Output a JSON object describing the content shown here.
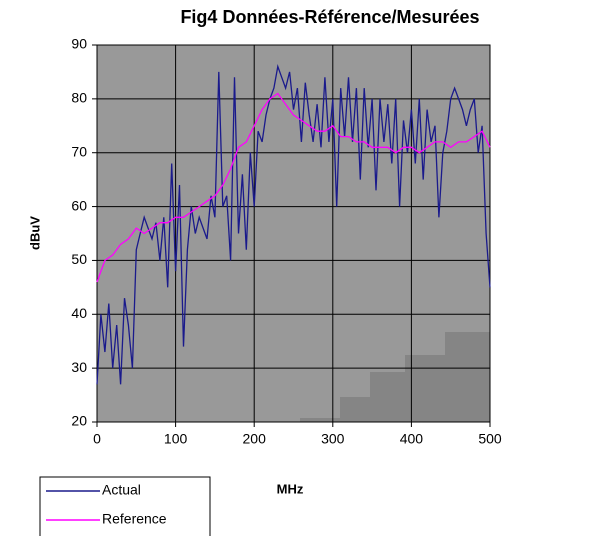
{
  "chart_data": {
    "type": "line",
    "title": "Fig4 Données-Référence/Mesurées",
    "x_label": "MHz",
    "y_label": "dBuV",
    "xlim": [
      0,
      500
    ],
    "xticks": [
      0,
      100,
      200,
      300,
      400,
      500
    ],
    "ylim": [
      20,
      90
    ],
    "yticks": [
      20,
      30,
      40,
      50,
      60,
      70,
      80,
      90
    ],
    "grid": true,
    "legend": "bottom-left",
    "series": [
      {
        "name": "Actual",
        "color": "#1a1a8c",
        "x": [
          0,
          5,
          10,
          15,
          20,
          25,
          30,
          35,
          40,
          45,
          50,
          55,
          60,
          65,
          70,
          75,
          80,
          85,
          90,
          95,
          100,
          105,
          110,
          115,
          120,
          125,
          130,
          135,
          140,
          145,
          150,
          155,
          160,
          165,
          170,
          175,
          180,
          185,
          190,
          195,
          200,
          205,
          210,
          215,
          220,
          225,
          230,
          235,
          240,
          245,
          250,
          255,
          260,
          265,
          270,
          275,
          280,
          285,
          290,
          295,
          300,
          305,
          310,
          315,
          320,
          325,
          330,
          335,
          340,
          345,
          350,
          355,
          360,
          365,
          370,
          375,
          380,
          385,
          390,
          395,
          400,
          405,
          410,
          415,
          420,
          425,
          430,
          435,
          440,
          445,
          450,
          455,
          460,
          465,
          470,
          475,
          480,
          485,
          490,
          495,
          500
        ],
        "values": [
          27,
          40,
          33,
          42,
          30,
          38,
          27,
          43,
          38,
          30,
          52,
          55,
          58,
          56,
          54,
          57,
          50,
          58,
          45,
          68,
          48,
          64,
          34,
          52,
          60,
          55,
          58,
          56,
          54,
          62,
          58,
          85,
          60,
          62,
          50,
          84,
          55,
          66,
          52,
          70,
          60,
          74,
          72,
          77,
          80,
          82,
          86,
          84,
          82,
          85,
          78,
          82,
          72,
          83,
          77,
          72,
          79,
          71,
          84,
          72,
          80,
          60,
          82,
          73,
          84,
          72,
          82,
          65,
          82,
          71,
          80,
          63,
          80,
          72,
          79,
          68,
          80,
          60,
          76,
          70,
          78,
          68,
          80,
          65,
          78,
          72,
          75,
          58,
          70,
          74,
          80,
          82,
          80,
          78,
          75,
          78,
          80,
          70,
          75,
          55,
          45
        ]
      },
      {
        "name": "Reference",
        "color": "#ff00ff",
        "x": [
          0,
          10,
          20,
          30,
          40,
          50,
          60,
          70,
          80,
          90,
          100,
          110,
          120,
          130,
          140,
          150,
          160,
          170,
          180,
          190,
          200,
          210,
          220,
          230,
          240,
          250,
          260,
          270,
          280,
          290,
          300,
          310,
          320,
          330,
          340,
          350,
          360,
          370,
          380,
          390,
          400,
          410,
          420,
          430,
          440,
          450,
          460,
          470,
          480,
          490,
          500
        ],
        "values": [
          46,
          50,
          51,
          53,
          54,
          56,
          55,
          56,
          57,
          57,
          58,
          58,
          59,
          60,
          61,
          62,
          64,
          67,
          71,
          72,
          75,
          78,
          80,
          81,
          79,
          77,
          76,
          75,
          74,
          74,
          75,
          73,
          73,
          72,
          72,
          71,
          71,
          71,
          70,
          71,
          71,
          70,
          71,
          72,
          72,
          71,
          72,
          72,
          73,
          74,
          71
        ]
      }
    ]
  }
}
